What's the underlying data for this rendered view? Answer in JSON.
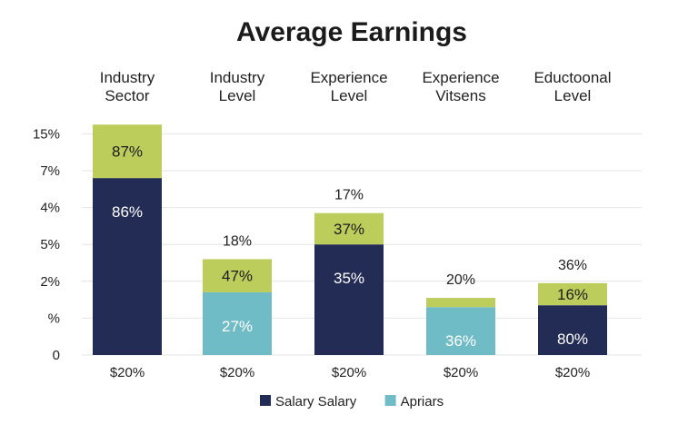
{
  "colors": {
    "salary": "#232c54",
    "apriars": "#6fbcc6",
    "top": "#bccd5c"
  },
  "chart_data": {
    "type": "bar",
    "title": "Average Earnings",
    "categories": [
      [
        "Industry",
        "Sector"
      ],
      [
        "Industry",
        "Level"
      ],
      [
        "Experience",
        "Level"
      ],
      [
        "Experience",
        "Vitsens"
      ],
      [
        "Eductoonal",
        "Level"
      ]
    ],
    "y_tick_labels": [
      "15%",
      "7%",
      "4%",
      "5%",
      "2%",
      "%",
      "0"
    ],
    "x_tick_labels": [
      "$20%",
      "$20%",
      "$20%",
      "$20%",
      "$20%"
    ],
    "grid": true,
    "legend_position": "bottom",
    "legend": [
      {
        "label": "Salary Salary",
        "color_key": "salary"
      },
      {
        "label": "Apriars",
        "color_key": "apriars"
      }
    ],
    "bars": [
      {
        "base_color": "salary",
        "base_value": 4.8,
        "base_label": "86%",
        "top_value": 1.45,
        "top_label": "87%",
        "above_label": ""
      },
      {
        "base_color": "apriars",
        "base_value": 1.7,
        "base_label": "27%",
        "top_value": 0.9,
        "top_label": "47%",
        "above_label": "18%"
      },
      {
        "base_color": "salary",
        "base_value": 3.0,
        "base_label": "35%",
        "top_value": 0.85,
        "top_label": "37%",
        "above_label": "17%"
      },
      {
        "base_color": "apriars",
        "base_value": 1.3,
        "base_label": "36%",
        "top_value": 0.25,
        "top_label": "",
        "above_label": "20%"
      },
      {
        "base_color": "salary",
        "base_value": 1.35,
        "base_label": "80%",
        "top_value": 0.6,
        "top_label": "16%",
        "above_label": "36%"
      }
    ],
    "ylim": [
      0,
      6.25
    ]
  }
}
